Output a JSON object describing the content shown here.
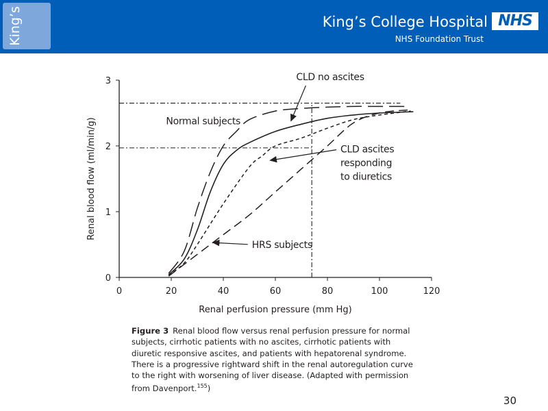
{
  "header": {
    "badge_text": "King’s",
    "hospital_name": "King’s College Hospital",
    "nhs_logo_text": "NHS",
    "trust_name": "NHS Foundation Trust",
    "background_color": "#005eb8"
  },
  "chart_data": {
    "type": "line",
    "title": "",
    "xlabel": "Renal perfusion pressure (mm Hg)",
    "ylabel": "Renal blood flow (ml/min/g)",
    "xlim": [
      0,
      120
    ],
    "ylim": [
      0,
      3
    ],
    "x_ticks": [
      0,
      20,
      40,
      60,
      80,
      100,
      120
    ],
    "y_ticks": [
      0,
      1,
      2,
      3
    ],
    "grid": false,
    "series": [
      {
        "name": "Normal subjects",
        "style": "long-dash",
        "points": [
          [
            19,
            0.06
          ],
          [
            25,
            0.4
          ],
          [
            30,
            1.05
          ],
          [
            35,
            1.6
          ],
          [
            40,
            2.0
          ],
          [
            45,
            2.22
          ],
          [
            50,
            2.4
          ],
          [
            60,
            2.53
          ],
          [
            70,
            2.57
          ],
          [
            80,
            2.59
          ],
          [
            90,
            2.6
          ],
          [
            100,
            2.6
          ],
          [
            110,
            2.6
          ]
        ]
      },
      {
        "name": "CLD no ascites",
        "style": "solid",
        "points": [
          [
            19,
            0.04
          ],
          [
            25,
            0.28
          ],
          [
            30,
            0.72
          ],
          [
            35,
            1.3
          ],
          [
            40,
            1.72
          ],
          [
            45,
            1.93
          ],
          [
            50,
            2.05
          ],
          [
            60,
            2.22
          ],
          [
            70,
            2.33
          ],
          [
            80,
            2.42
          ],
          [
            90,
            2.47
          ],
          [
            100,
            2.5
          ],
          [
            113,
            2.52
          ]
        ]
      },
      {
        "name": "CLD ascites responding to diuretics",
        "style": "short-dash",
        "points": [
          [
            19,
            0.03
          ],
          [
            25,
            0.22
          ],
          [
            30,
            0.5
          ],
          [
            40,
            1.12
          ],
          [
            50,
            1.68
          ],
          [
            55,
            1.85
          ],
          [
            60,
            2.0
          ],
          [
            70,
            2.12
          ],
          [
            80,
            2.27
          ],
          [
            90,
            2.4
          ],
          [
            100,
            2.47
          ],
          [
            112,
            2.53
          ]
        ]
      },
      {
        "name": "HRS subjects",
        "style": "medium-dash",
        "points": [
          [
            19,
            0.02
          ],
          [
            30,
            0.35
          ],
          [
            40,
            0.65
          ],
          [
            50,
            0.95
          ],
          [
            60,
            1.3
          ],
          [
            70,
            1.65
          ],
          [
            80,
            2.0
          ],
          [
            90,
            2.35
          ],
          [
            100,
            2.5
          ],
          [
            112,
            2.55
          ]
        ]
      }
    ],
    "reference_lines": [
      {
        "orientation": "horizontal",
        "y": 2.65,
        "x_range": [
          0,
          108
        ],
        "style": "dash-dot"
      },
      {
        "orientation": "horizontal",
        "y": 1.97,
        "x_range": [
          0,
          74
        ],
        "style": "dash-dot"
      },
      {
        "orientation": "vertical",
        "x": 74,
        "y_range": [
          0,
          2.65
        ],
        "style": "dash-dot"
      }
    ],
    "annotations": [
      {
        "lines": [
          "CLD no ascites"
        ],
        "anchor": [
          68,
          3.0
        ],
        "arrow_to": [
          66,
          2.38
        ]
      },
      {
        "lines": [
          "Normal subjects"
        ],
        "anchor": [
          18,
          2.33
        ],
        "arrow_to": null
      },
      {
        "lines": [
          "CLD ascites",
          "responding",
          "to diuretics"
        ],
        "anchor": [
          85,
          1.9
        ],
        "arrow_to": [
          58,
          1.78
        ]
      },
      {
        "lines": [
          "HRS subjects"
        ],
        "anchor": [
          51,
          0.45
        ],
        "arrow_to": [
          36,
          0.53
        ]
      }
    ]
  },
  "caption": {
    "figure_label": "Figure 3",
    "text": "Renal blood flow versus renal perfusion pressure for normal subjects, cirrhotic patients with no ascites, cirrhotic patients with diuretic responsive ascites, and patients with hepatorenal syndrome. There is a progressive rightward shift in the renal autoregulation curve to the right with worsening of liver disease. (Adapted with permission from Davenport.",
    "reference": "155",
    "closing": ")"
  },
  "page_number": "30"
}
